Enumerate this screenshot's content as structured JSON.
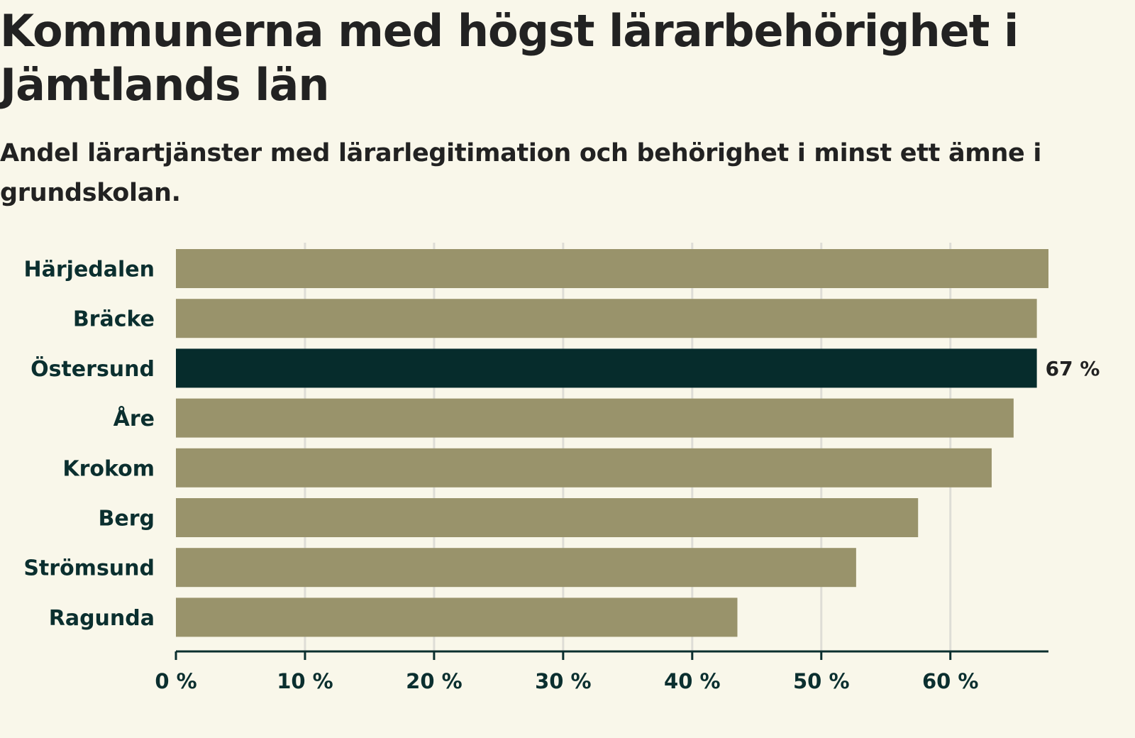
{
  "title": "Kommunerna med högst lärarbehörighet i Jämtlands län",
  "subtitle": "Andel lärartjänster med lärarlegitimation och behörighet i minst ett ämne i grundskolan.",
  "chart_data": {
    "type": "bar",
    "orientation": "horizontal",
    "title": "Kommunerna med högst lärarbehörighet i Jämtlands län",
    "subtitle": "Andel lärartjänster med lärarlegitimation och behörighet i minst ett ämne i grundskolan.",
    "categories": [
      "Härjedalen",
      "Bräcke",
      "Östersund",
      "Åre",
      "Krokom",
      "Berg",
      "Strömsund",
      "Ragunda"
    ],
    "values": [
      67.6,
      66.7,
      66.7,
      64.9,
      63.2,
      57.5,
      52.7,
      43.5
    ],
    "highlight": "Östersund",
    "annotation": {
      "category": "Östersund",
      "label": "67 %"
    },
    "xlim": [
      0,
      67.6
    ],
    "xticks": [
      0,
      10,
      20,
      30,
      40,
      50,
      60
    ],
    "xtick_labels": [
      "0 %",
      "10 %",
      "20 %",
      "30 %",
      "40 %",
      "50 %",
      "60 %"
    ],
    "xlabel": "",
    "ylabel": "",
    "grid": "vertical",
    "colors": {
      "bar": "#99936b",
      "highlight": "#062c2c",
      "label": "#0b2f2f",
      "grid": "#deddd6",
      "axis": "#0b2f2f",
      "background": "#f9f7ea"
    }
  }
}
